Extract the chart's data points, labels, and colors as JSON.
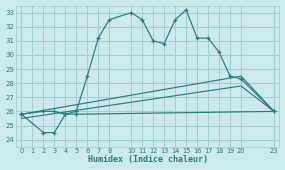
{
  "xlabel": "Humidex (Indice chaleur)",
  "bg_color": "#cce9ec",
  "grid_color": "#9fcdd1",
  "line_color": "#2a7a7e",
  "ylim": [
    23.5,
    33.5
  ],
  "xlim": [
    -0.5,
    23.5
  ],
  "yticks": [
    24,
    25,
    26,
    27,
    28,
    29,
    30,
    31,
    32,
    33
  ],
  "xticks": [
    0,
    1,
    2,
    3,
    4,
    5,
    6,
    7,
    8,
    10,
    11,
    12,
    13,
    14,
    15,
    16,
    17,
    18,
    19,
    20,
    23
  ],
  "line1_x": [
    0,
    2,
    3,
    4,
    5,
    6,
    7,
    8,
    10,
    11,
    12,
    13,
    14,
    15,
    16,
    17,
    18,
    19,
    20,
    23
  ],
  "line1_y": [
    25.8,
    26.0,
    26.0,
    25.8,
    26.0,
    28.5,
    31.2,
    32.5,
    33.0,
    32.5,
    31.0,
    30.8,
    32.5,
    33.2,
    31.2,
    31.2,
    30.2,
    28.5,
    28.3,
    26.0
  ],
  "line2_x": [
    0,
    2,
    3,
    4,
    5,
    23
  ],
  "line2_y": [
    25.8,
    24.5,
    24.5,
    25.8,
    25.8,
    26.0
  ],
  "line3_x": [
    0,
    20,
    23
  ],
  "line3_y": [
    25.8,
    28.5,
    26.0
  ],
  "line4_x": [
    0,
    20,
    23
  ],
  "line4_y": [
    25.5,
    27.8,
    26.0
  ]
}
